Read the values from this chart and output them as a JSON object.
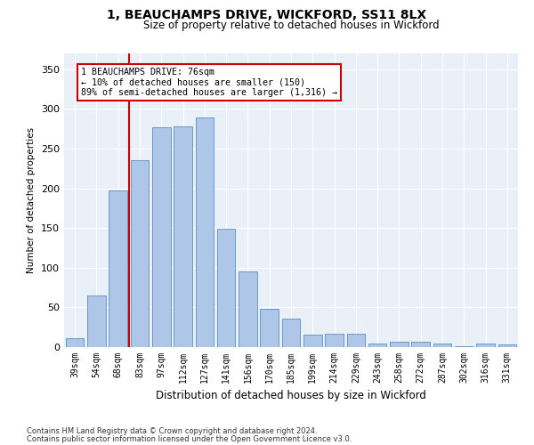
{
  "title1": "1, BEAUCHAMPS DRIVE, WICKFORD, SS11 8LX",
  "title2": "Size of property relative to detached houses in Wickford",
  "xlabel": "Distribution of detached houses by size in Wickford",
  "ylabel": "Number of detached properties",
  "categories": [
    "39sqm",
    "54sqm",
    "68sqm",
    "83sqm",
    "97sqm",
    "112sqm",
    "127sqm",
    "141sqm",
    "156sqm",
    "170sqm",
    "185sqm",
    "199sqm",
    "214sqm",
    "229sqm",
    "243sqm",
    "258sqm",
    "272sqm",
    "287sqm",
    "302sqm",
    "316sqm",
    "331sqm"
  ],
  "values": [
    11,
    65,
    197,
    236,
    277,
    278,
    289,
    149,
    95,
    48,
    36,
    16,
    17,
    17,
    5,
    7,
    7,
    5,
    1,
    5,
    3
  ],
  "bar_color": "#aec6e8",
  "bar_edge_color": "#5a8fc0",
  "vline_color": "#cc0000",
  "annotation_text": "1 BEAUCHAMPS DRIVE: 76sqm\n← 10% of detached houses are smaller (150)\n89% of semi-detached houses are larger (1,316) →",
  "annotation_box_color": "#ffffff",
  "annotation_box_edge": "#cc0000",
  "ylim": [
    0,
    370
  ],
  "yticks": [
    0,
    50,
    100,
    150,
    200,
    250,
    300,
    350
  ],
  "bg_color": "#eaf0f8",
  "footer1": "Contains HM Land Registry data © Crown copyright and database right 2024.",
  "footer2": "Contains public sector information licensed under the Open Government Licence v3.0."
}
